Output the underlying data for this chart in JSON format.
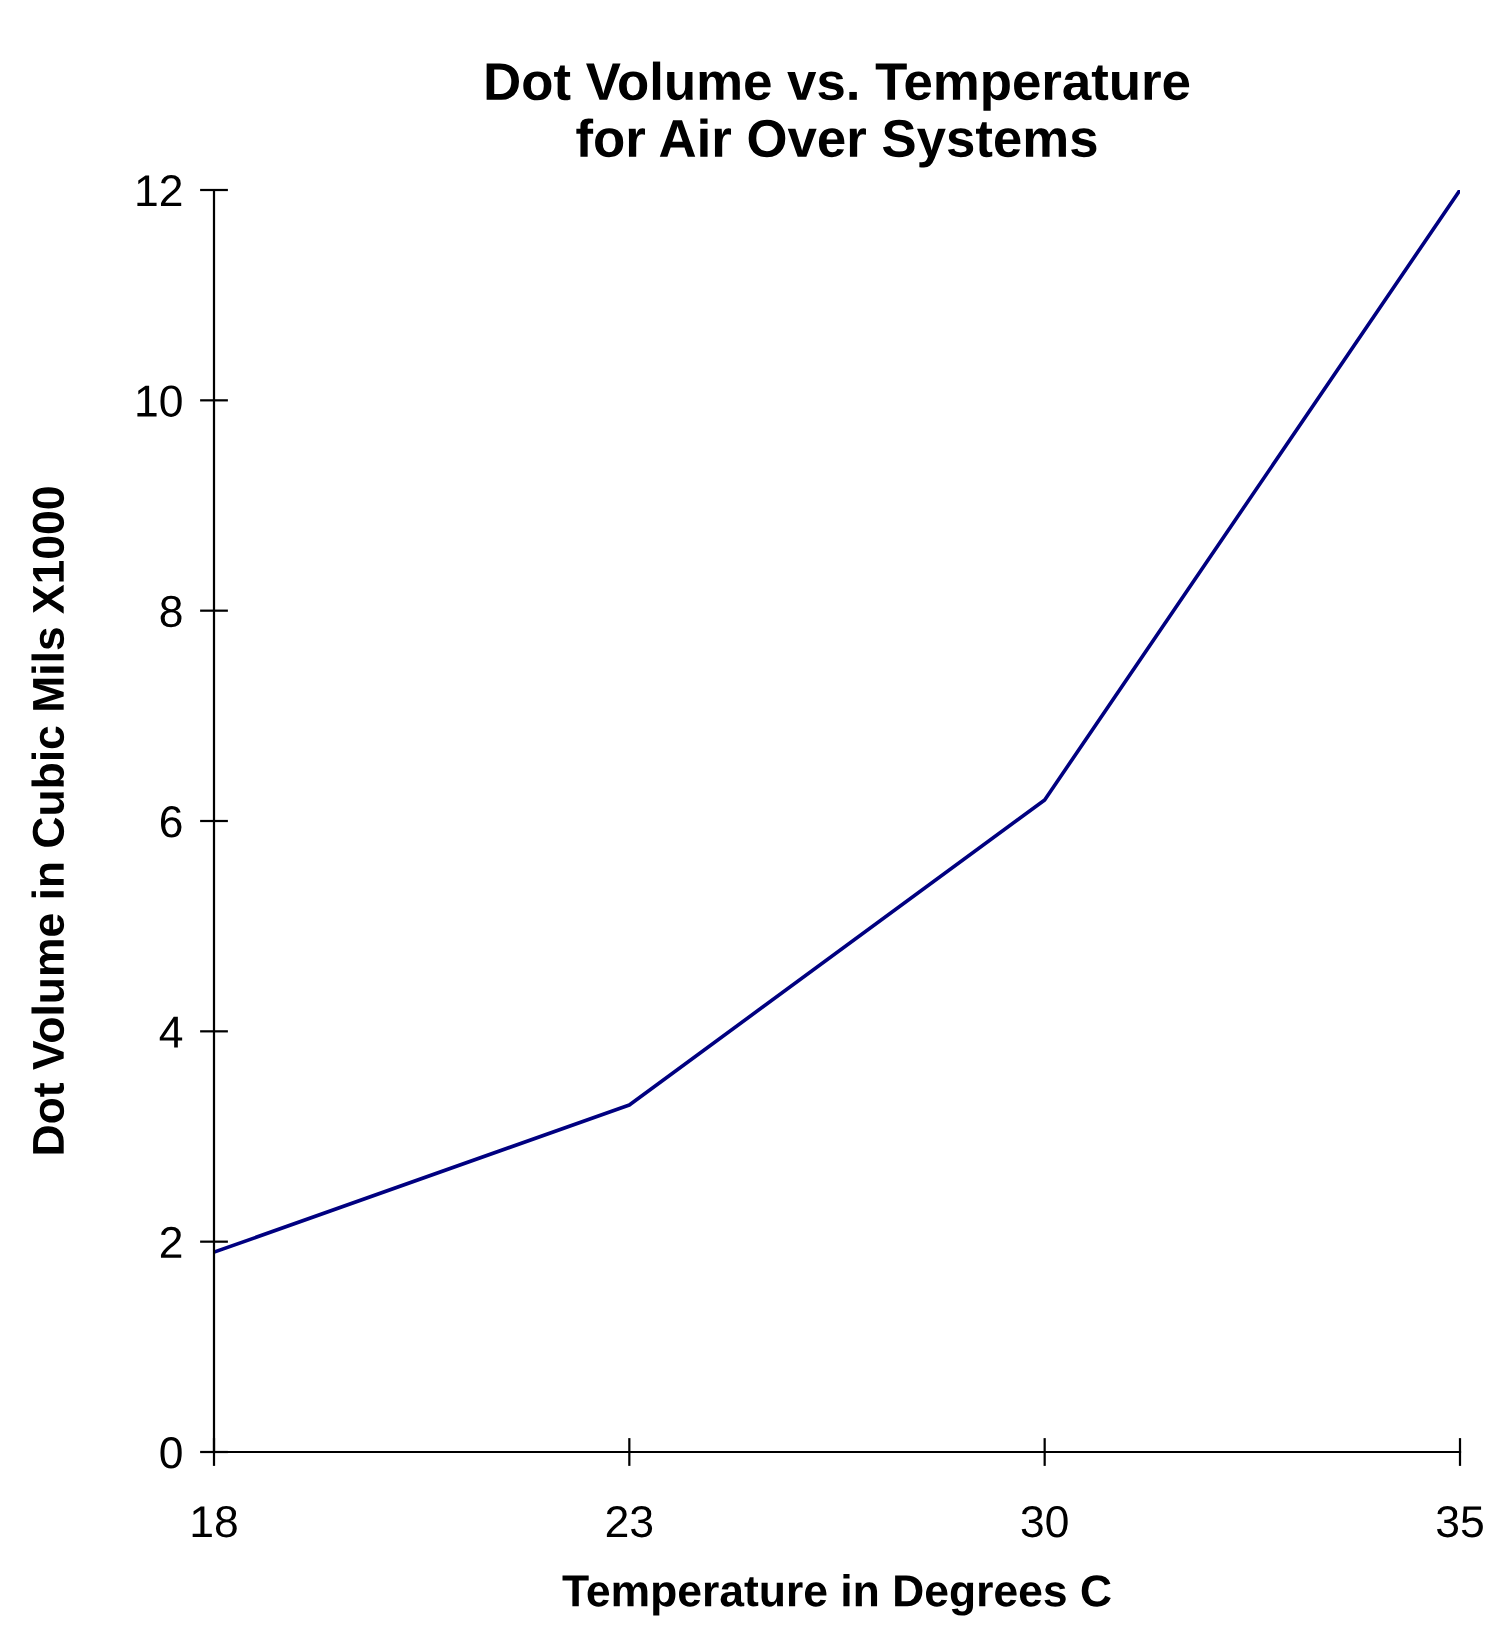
{
  "chart_data": {
    "type": "line",
    "title": "Dot Volume vs. Temperature\nfor Air Over Systems",
    "xlabel": "Temperature in Degrees C",
    "ylabel": "Dot Volume in Cubic Mils X1000",
    "categories": [
      "18",
      "23",
      "30",
      "35"
    ],
    "series": [
      {
        "color": "#000080",
        "values": [
          1.9,
          3.3,
          6.2,
          12.0
        ]
      }
    ],
    "ylim": [
      0,
      12
    ],
    "yticks": [
      0,
      2,
      4,
      6,
      8,
      10,
      12
    ],
    "grid": false,
    "marker": "none",
    "line_style": "solid"
  }
}
